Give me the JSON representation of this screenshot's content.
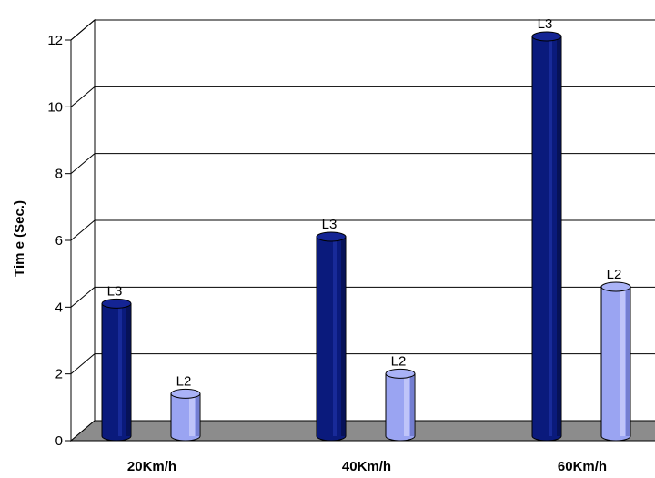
{
  "chart_data": {
    "type": "bar",
    "categories": [
      "20Km/h",
      "40Km/h",
      "60Km/h"
    ],
    "series": [
      {
        "labels": [
          "L3",
          "L3",
          "L3"
        ],
        "values": [
          4,
          6,
          12
        ],
        "color": "#0a1a7c"
      },
      {
        "labels": [
          "L2",
          "L2",
          "L2"
        ],
        "values": [
          1.3,
          1.9,
          4.5
        ],
        "color": "#9aa4f2"
      }
    ],
    "ylabel": "Tim e (Sec.)",
    "xlabel": "",
    "ylim": [
      0,
      12
    ],
    "yticks": [
      0,
      2,
      4,
      6,
      8,
      10,
      12
    ],
    "grid": true,
    "floor_color": "#8c8c8c"
  }
}
